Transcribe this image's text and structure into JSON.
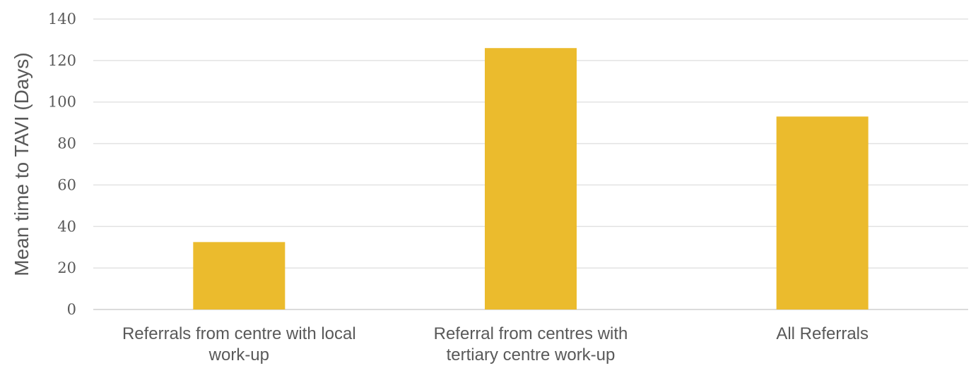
{
  "chart_data": {
    "type": "bar",
    "categories": [
      [
        "Referrals from centre with local",
        "work-up"
      ],
      [
        "Referral from centres with",
        "tertiary centre work-up"
      ],
      [
        "All Referrals"
      ]
    ],
    "values": [
      32.5,
      126,
      93
    ],
    "ylabel": "Mean time to TAVI (Days)",
    "ylim": [
      0,
      140
    ],
    "yticks": [
      0,
      20,
      40,
      60,
      80,
      100,
      120,
      140
    ],
    "grid": true,
    "bar_color": "#EBBB2D"
  }
}
